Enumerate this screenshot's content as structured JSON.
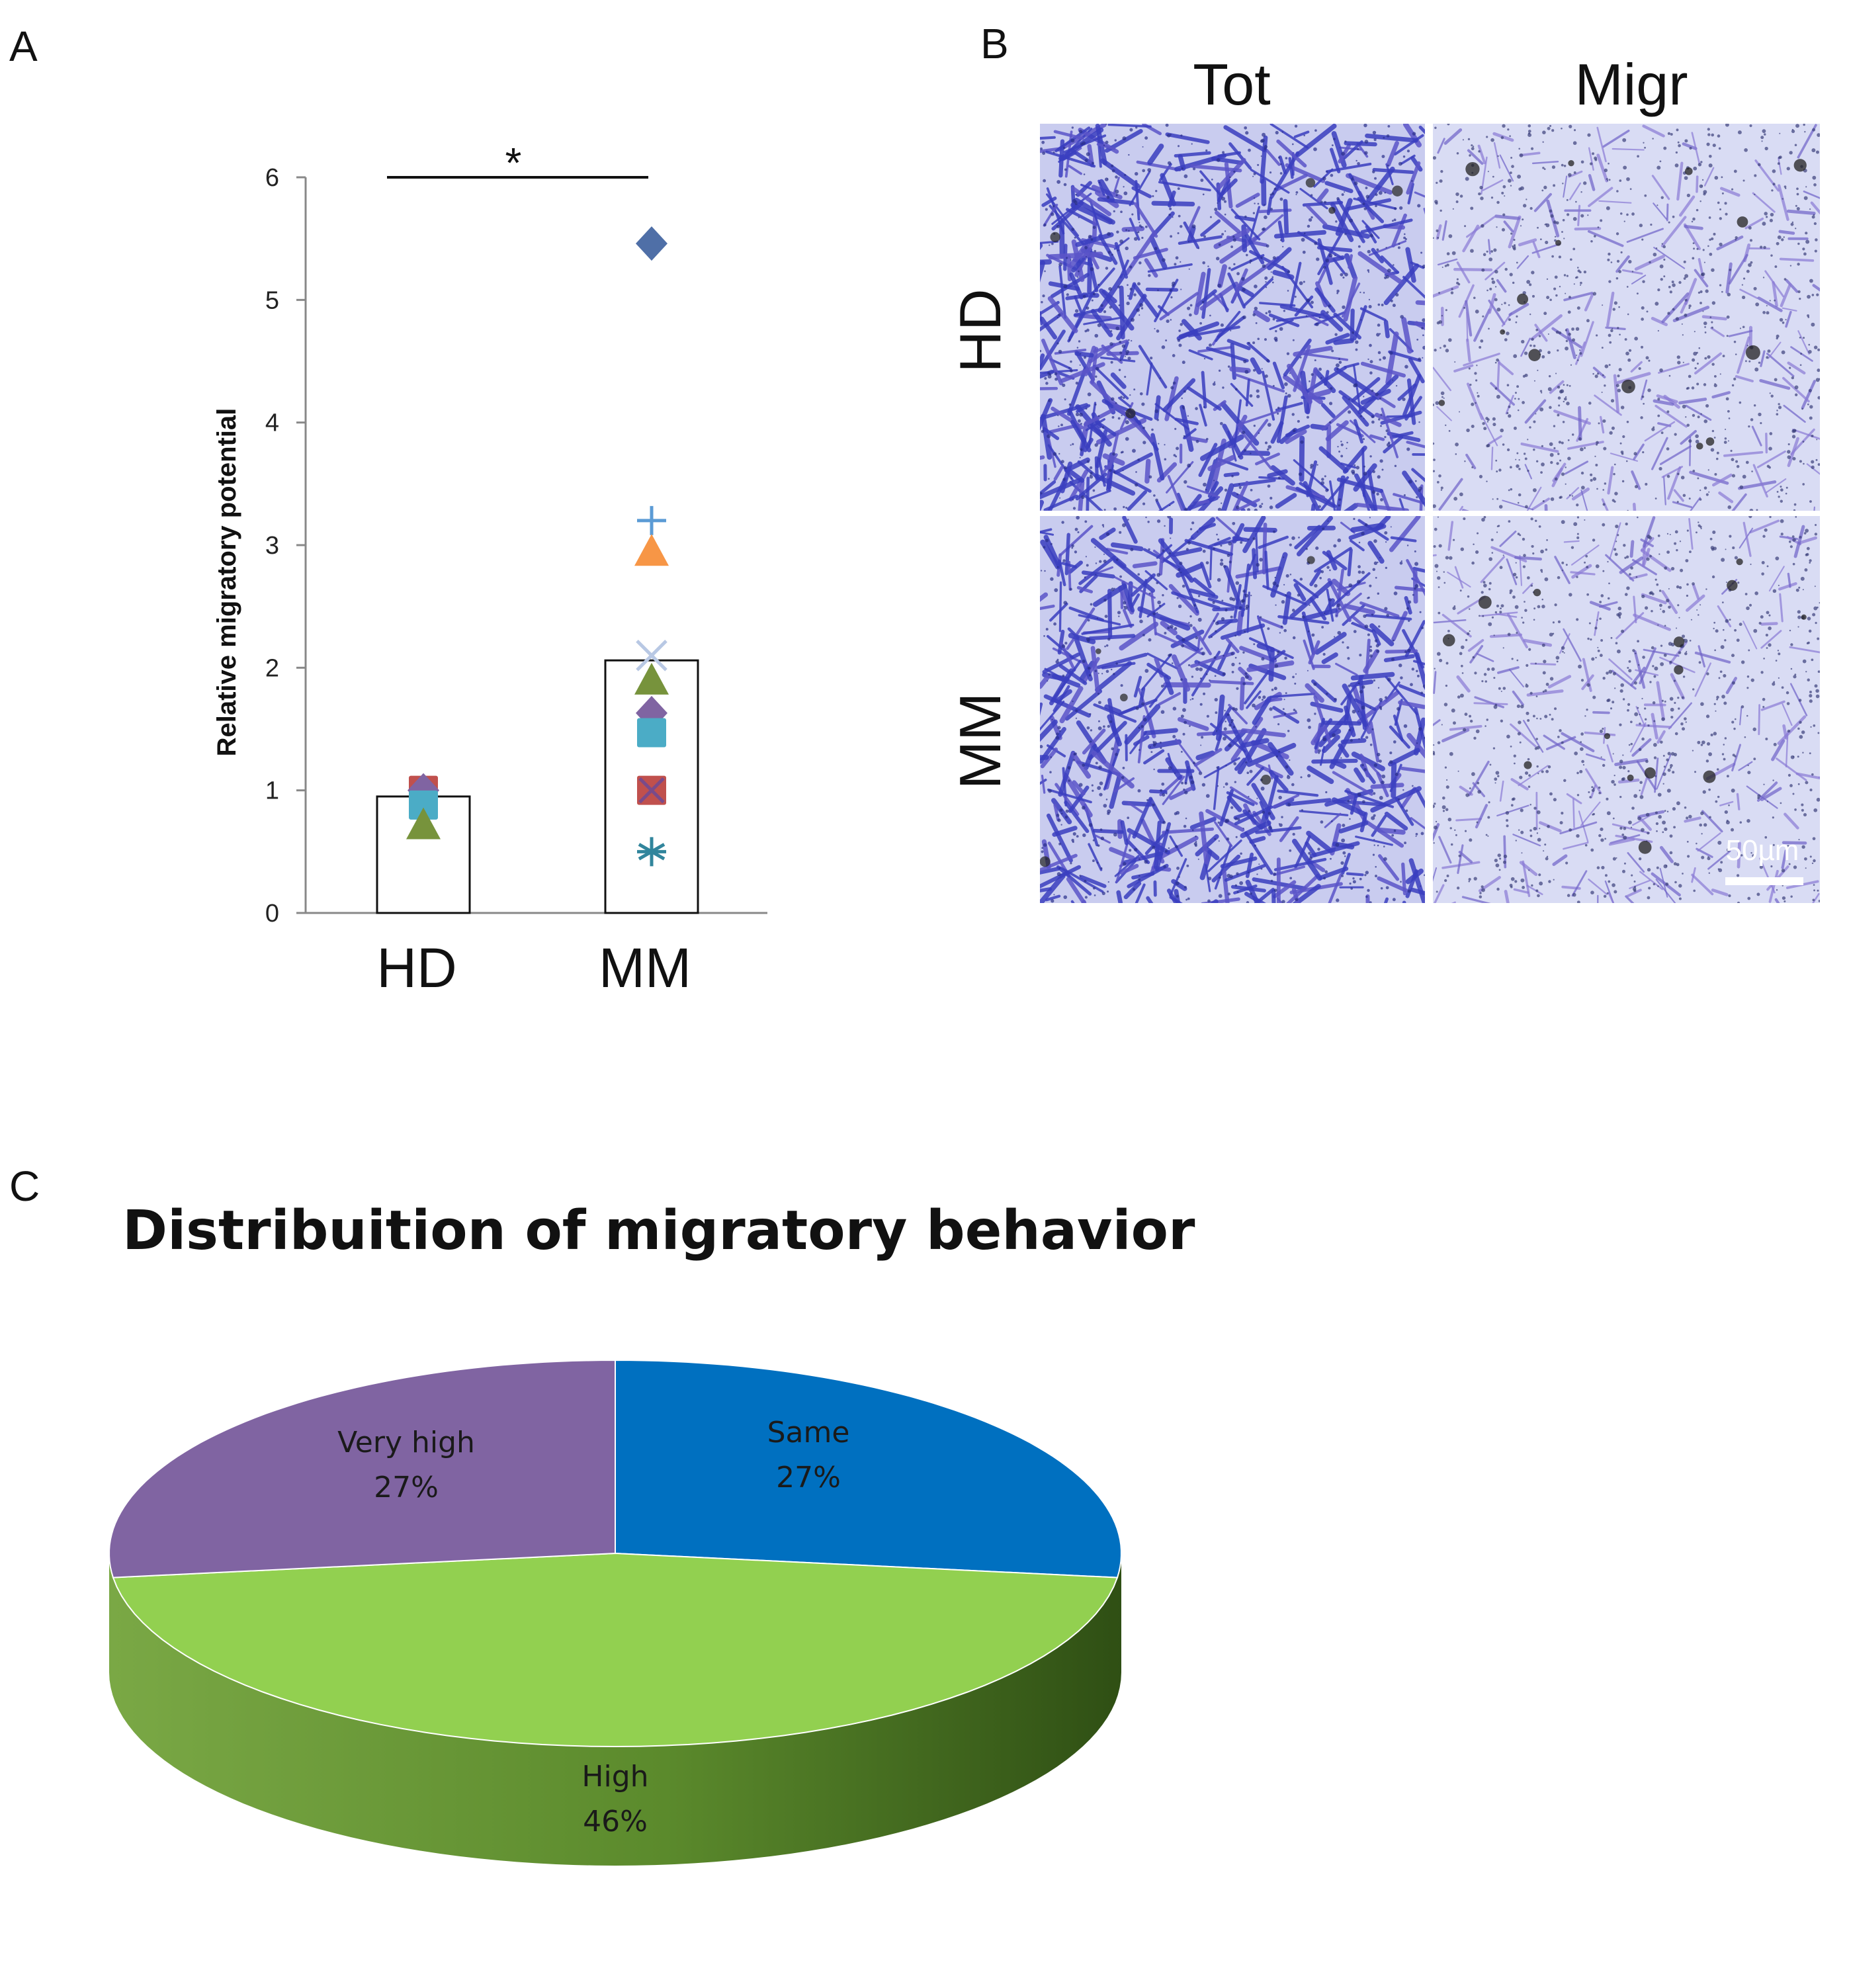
{
  "panels": {
    "a": {
      "letter": "A"
    },
    "b": {
      "letter": "B"
    },
    "c": {
      "letter": "C"
    }
  },
  "chart_data": [
    {
      "type": "bar",
      "panel": "A",
      "title": "",
      "xlabel": "",
      "ylabel": "Relative migratory potential",
      "ylim": [
        0,
        6
      ],
      "yticks": [
        "0",
        "1",
        "2",
        "3",
        "4",
        "5",
        "6"
      ],
      "categories": [
        "HD",
        "MM"
      ],
      "values": [
        0.95,
        2.06
      ],
      "significance": {
        "between": [
          "HD",
          "MM"
        ],
        "label": "*"
      },
      "points": [
        {
          "category": "HD",
          "marker": "square",
          "color": "#C0504D",
          "value": 1.0
        },
        {
          "category": "HD",
          "marker": "diamond",
          "color": "#8064A2",
          "value": 1.0
        },
        {
          "category": "HD",
          "marker": "square",
          "color": "#4BACC6",
          "value": 0.88
        },
        {
          "category": "HD",
          "marker": "triangle",
          "color": "#77933C",
          "value": 0.72
        },
        {
          "category": "MM",
          "marker": "diamond",
          "color": "#4F6FA7",
          "value": 5.46
        },
        {
          "category": "MM",
          "marker": "plus",
          "color": "#5B9BD5",
          "value": 3.2
        },
        {
          "category": "MM",
          "marker": "triangle",
          "color": "#F79646",
          "value": 2.95
        },
        {
          "category": "MM",
          "marker": "cross",
          "color": "#B8C8E4",
          "value": 2.1
        },
        {
          "category": "MM",
          "marker": "triangle",
          "color": "#77933C",
          "value": 1.9
        },
        {
          "category": "MM",
          "marker": "diamond",
          "color": "#8064A2",
          "value": 1.63
        },
        {
          "category": "MM",
          "marker": "square",
          "color": "#4BACC6",
          "value": 1.47
        },
        {
          "category": "MM",
          "marker": "square-x",
          "color": "#C0504D",
          "value": 1.0
        },
        {
          "category": "MM",
          "marker": "asterisk",
          "color": "#31859C",
          "value": 0.5
        }
      ]
    },
    {
      "type": "pie",
      "panel": "C",
      "title": "Distribuition of migratory behavior",
      "slices": [
        {
          "name": "Same",
          "value": 27,
          "label": "27%",
          "color": "#0070C0"
        },
        {
          "name": "High",
          "value": 46,
          "label": "46%",
          "color": "#92D050",
          "side_color": "#5A8A2A"
        },
        {
          "name": "Very high",
          "value": 27,
          "label": "27%",
          "color": "#8064A2"
        }
      ]
    }
  ],
  "micrographs": {
    "columns": [
      "Tot",
      "Migr"
    ],
    "rows": [
      "HD",
      "MM"
    ],
    "scalebar": "50µm",
    "colors": {
      "bg": "#d9dcf4",
      "dense": "#3a3fc0",
      "light": "#8a7ad6"
    }
  }
}
